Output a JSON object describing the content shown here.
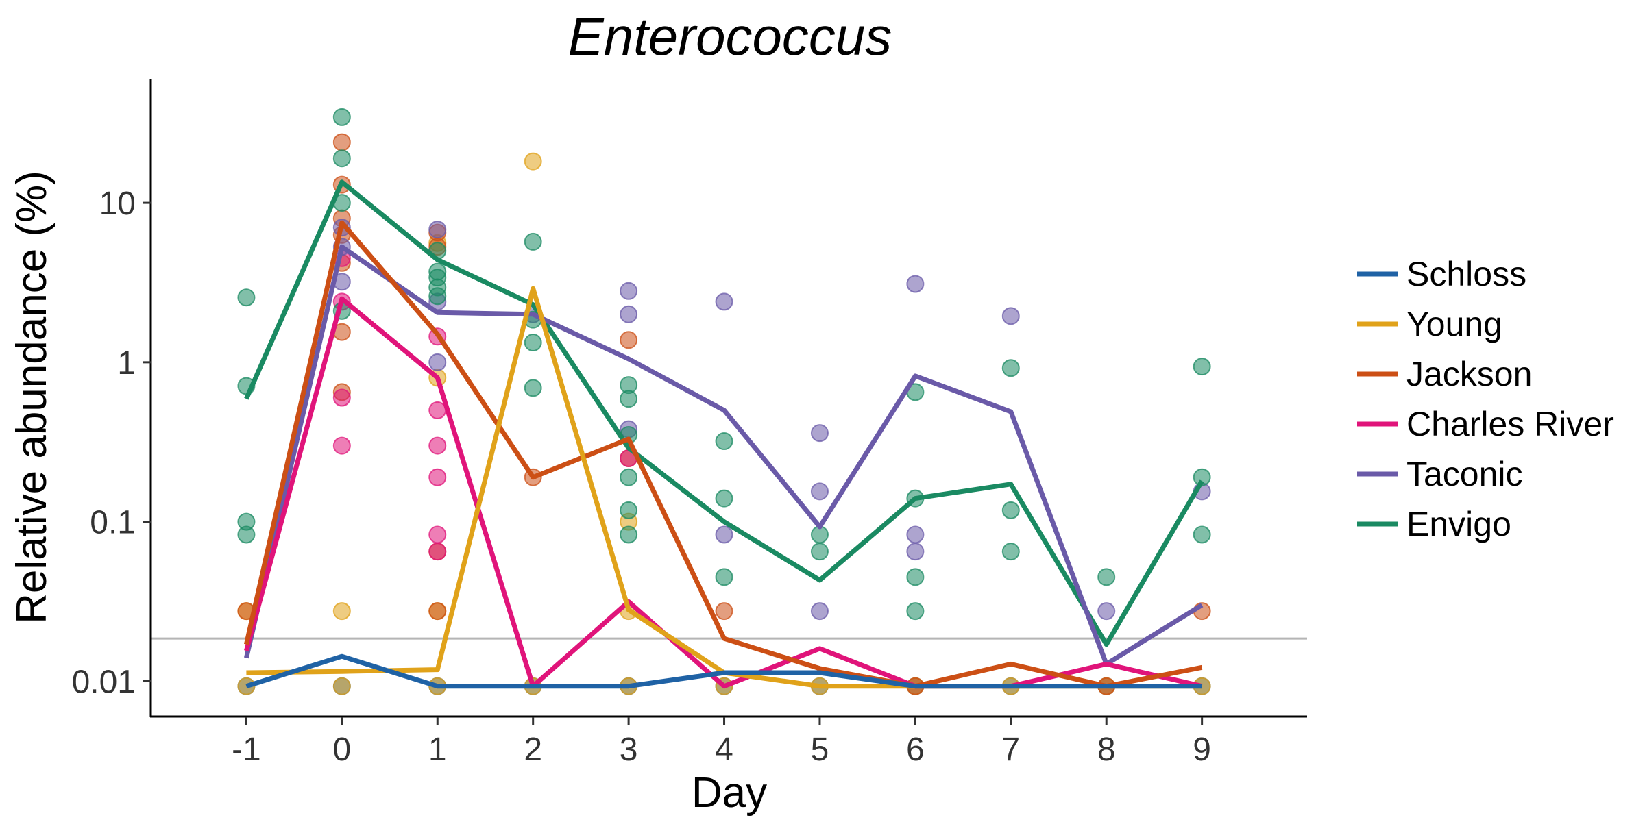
{
  "chart_data": {
    "type": "line",
    "title": "Enterococcus",
    "xlabel": "Day",
    "ylabel": "Relative abundance (%)",
    "x": [
      -1,
      0,
      1,
      2,
      3,
      4,
      5,
      6,
      7,
      8,
      9
    ],
    "x_tick_labels": [
      "-1",
      "0",
      "1",
      "2",
      "3",
      "4",
      "5",
      "6",
      "7",
      "8",
      "9"
    ],
    "y_scale": "log",
    "ylim": [
      0.006,
      60
    ],
    "y_ticks": [
      0.01,
      0.1,
      1,
      10
    ],
    "y_tick_labels": [
      "0.01",
      "0.1",
      "1",
      "10"
    ],
    "xlim": [
      -2,
      10.1
    ],
    "limit_of_detection": 0.0185,
    "legend_position": "right",
    "grid": false,
    "series": [
      {
        "name": "Schloss",
        "color": "#1f62a5",
        "line": [
          0.0093,
          0.0143,
          0.0093,
          0.0093,
          0.0093,
          0.0113,
          0.0113,
          0.0093,
          0.0093,
          0.0093,
          0.0093
        ],
        "points": [
          [
            -1,
            0.0093
          ],
          [
            0,
            0.0093
          ],
          [
            1,
            0.0093
          ],
          [
            2,
            0.0093
          ],
          [
            3,
            0.0093
          ],
          [
            4,
            0.0093
          ],
          [
            5,
            0.0093
          ],
          [
            6,
            0.0093
          ],
          [
            7,
            0.0093
          ],
          [
            8,
            0.0093
          ],
          [
            9,
            0.0093
          ]
        ]
      },
      {
        "name": "Young",
        "color": "#e0a21a",
        "line": [
          0.0113,
          0.0115,
          0.0118,
          2.9,
          0.028,
          0.0113,
          0.0093,
          0.0093,
          0.0093,
          0.0093,
          0.0093
        ],
        "points": [
          [
            -1,
            0.0093
          ],
          [
            -1,
            0.0275
          ],
          [
            0,
            0.0093
          ],
          [
            0,
            0.0275
          ],
          [
            1,
            0.0093
          ],
          [
            1,
            0.0275
          ],
          [
            1,
            0.8
          ],
          [
            1,
            5.6
          ],
          [
            2,
            18.2
          ],
          [
            2,
            0.0093
          ],
          [
            3,
            0.1
          ],
          [
            3,
            0.0275
          ],
          [
            3,
            0.0093
          ],
          [
            4,
            0.0093
          ],
          [
            5,
            0.0093
          ],
          [
            6,
            0.0093
          ],
          [
            7,
            0.0093
          ],
          [
            8,
            0.0093
          ],
          [
            9,
            0.0093
          ]
        ]
      },
      {
        "name": "Jackson",
        "color": "#cc4f15",
        "line": [
          0.017,
          7.5,
          1.5,
          0.19,
          0.33,
          0.0185,
          0.012,
          0.0093,
          0.0128,
          0.0093,
          0.0122
        ],
        "points": [
          [
            -1,
            0.0275
          ],
          [
            0,
            24
          ],
          [
            0,
            13
          ],
          [
            0,
            8
          ],
          [
            0,
            6.3
          ],
          [
            0,
            4.2
          ],
          [
            0,
            1.55
          ],
          [
            0,
            0.65
          ],
          [
            1,
            6.5
          ],
          [
            1,
            5.3
          ],
          [
            1,
            0.065
          ],
          [
            1,
            0.0275
          ],
          [
            2,
            0.19
          ],
          [
            3,
            1.38
          ],
          [
            3,
            0.25
          ],
          [
            4,
            0.0275
          ],
          [
            6,
            0.0093
          ],
          [
            8,
            0.0093
          ],
          [
            9,
            0.0275
          ]
        ]
      },
      {
        "name": "Charles River",
        "color": "#e0147a",
        "line": [
          0.0155,
          2.5,
          0.8,
          0.0093,
          0.0315,
          0.0093,
          0.016,
          0.0093,
          0.0093,
          0.0128,
          0.0093
        ],
        "points": [
          [
            0,
            4.5
          ],
          [
            0,
            2.4
          ],
          [
            0,
            0.6
          ],
          [
            0,
            0.3
          ],
          [
            1,
            1.45
          ],
          [
            1,
            0.5
          ],
          [
            1,
            0.3
          ],
          [
            1,
            0.19
          ],
          [
            1,
            0.083
          ],
          [
            1,
            0.065
          ],
          [
            3,
            0.25
          ]
        ]
      },
      {
        "name": "Taconic",
        "color": "#6a5aa8",
        "line": [
          0.014,
          5.3,
          2.05,
          2.0,
          1.05,
          0.5,
          0.093,
          0.82,
          0.49,
          0.0128,
          0.03
        ],
        "points": [
          [
            0,
            7.0
          ],
          [
            0,
            5.3
          ],
          [
            0,
            3.2
          ],
          [
            1,
            6.8
          ],
          [
            1,
            2.4
          ],
          [
            1,
            1.0
          ],
          [
            2,
            2.0
          ],
          [
            3,
            2.8
          ],
          [
            3,
            2.0
          ],
          [
            3,
            0.38
          ],
          [
            4,
            2.4
          ],
          [
            4,
            0.083
          ],
          [
            5,
            0.36
          ],
          [
            5,
            0.155
          ],
          [
            5,
            0.0275
          ],
          [
            6,
            3.1
          ],
          [
            6,
            0.083
          ],
          [
            6,
            0.065
          ],
          [
            7,
            1.95
          ],
          [
            8,
            0.0275
          ],
          [
            9,
            0.155
          ]
        ]
      },
      {
        "name": "Envigo",
        "color": "#1a8a62",
        "line": [
          0.59,
          13.5,
          4.4,
          2.3,
          0.29,
          0.1,
          0.043,
          0.14,
          0.172,
          0.017,
          0.18
        ],
        "points": [
          [
            -1,
            2.55
          ],
          [
            -1,
            0.71
          ],
          [
            -1,
            0.1
          ],
          [
            -1,
            0.083
          ],
          [
            0,
            34.5
          ],
          [
            0,
            19
          ],
          [
            0,
            10
          ],
          [
            0,
            2.1
          ],
          [
            1,
            5.0
          ],
          [
            1,
            3.7
          ],
          [
            1,
            3.4
          ],
          [
            1,
            2.95
          ],
          [
            1,
            2.6
          ],
          [
            2,
            5.7
          ],
          [
            2,
            1.85
          ],
          [
            2,
            1.33
          ],
          [
            2,
            0.69
          ],
          [
            3,
            0.72
          ],
          [
            3,
            0.59
          ],
          [
            3,
            0.35
          ],
          [
            3,
            0.19
          ],
          [
            3,
            0.118
          ],
          [
            3,
            0.083
          ],
          [
            4,
            0.32
          ],
          [
            4,
            0.14
          ],
          [
            4,
            0.045
          ],
          [
            5,
            0.083
          ],
          [
            5,
            0.065
          ],
          [
            6,
            0.65
          ],
          [
            6,
            0.14
          ],
          [
            6,
            0.045
          ],
          [
            6,
            0.0275
          ],
          [
            7,
            0.92
          ],
          [
            7,
            0.118
          ],
          [
            7,
            0.065
          ],
          [
            8,
            0.045
          ],
          [
            9,
            0.94
          ],
          [
            9,
            0.19
          ],
          [
            9,
            0.083
          ]
        ]
      }
    ]
  }
}
